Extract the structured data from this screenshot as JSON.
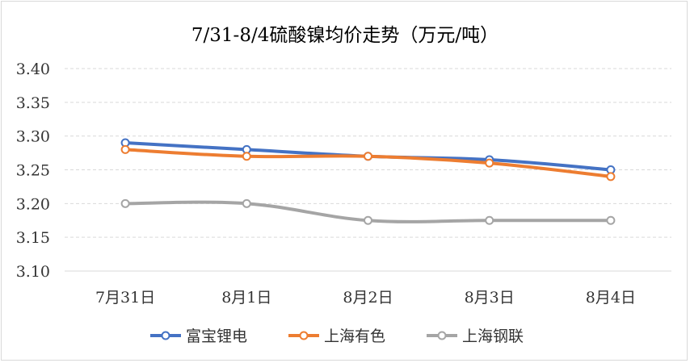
{
  "chart_data": {
    "type": "line",
    "title": "7/31-8/4硫酸镍均价走势（万元/吨）",
    "categories": [
      "7月31日",
      "8月1日",
      "8月2日",
      "8月3日",
      "8月4日"
    ],
    "ylim": [
      3.1,
      3.4
    ],
    "yticks": [
      "3.10",
      "3.15",
      "3.20",
      "3.25",
      "3.30",
      "3.35",
      "3.40"
    ],
    "grid": true,
    "legend_position": "bottom",
    "series": [
      {
        "name": "富宝锂电",
        "color": "#4472c4",
        "values": [
          3.29,
          3.28,
          3.27,
          3.265,
          3.25
        ]
      },
      {
        "name": "上海有色",
        "color": "#ed7d31",
        "values": [
          3.28,
          3.27,
          3.27,
          3.26,
          3.24
        ]
      },
      {
        "name": "上海钢联",
        "color": "#a5a5a5",
        "values": [
          3.2,
          3.2,
          3.175,
          3.175,
          3.175
        ]
      }
    ]
  }
}
